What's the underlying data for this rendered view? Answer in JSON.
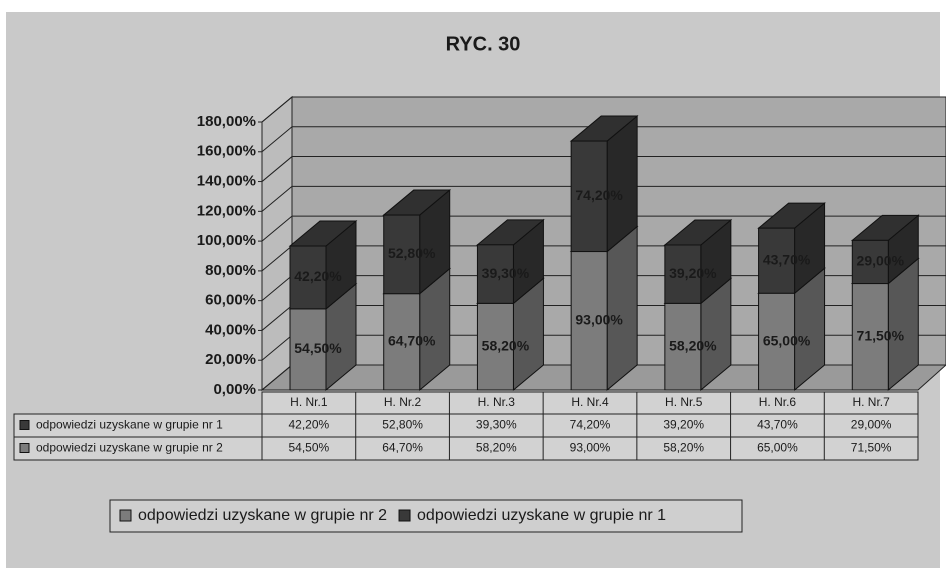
{
  "chart_data": {
    "type": "bar3d_stacked",
    "title": "RYC. 30",
    "categories": [
      "H. Nr.1",
      "H. Nr.2",
      "H. Nr.3",
      "H. Nr.4",
      "H. Nr.5",
      "H. Nr.6",
      "H. Nr.7"
    ],
    "series": [
      {
        "name": "odpowiedzi uzyskane w grupie nr 2",
        "color": "#7c7c7c",
        "values": [
          54.5,
          64.7,
          58.2,
          93.0,
          58.2,
          65.0,
          71.5
        ],
        "value_labels": [
          "54,50%",
          "64,70%",
          "58,20%",
          "93,00%",
          "58,20%",
          "65,00%",
          "71,50%"
        ]
      },
      {
        "name": "odpowiedzi uzyskane w grupie nr 1",
        "color": "#393939",
        "values": [
          42.2,
          52.8,
          39.3,
          74.2,
          39.2,
          43.7,
          29.0
        ],
        "value_labels": [
          "42,20%",
          "52,80%",
          "39,30%",
          "74,20%",
          "39,20%",
          "43,70%",
          "29,00%"
        ]
      }
    ],
    "ylim": [
      0,
      180
    ],
    "yticks": [
      {
        "value": 0,
        "label": "0,00%"
      },
      {
        "value": 20,
        "label": "20,00%"
      },
      {
        "value": 40,
        "label": "40,00%"
      },
      {
        "value": 60,
        "label": "60,00%"
      },
      {
        "value": 80,
        "label": "80,00%"
      },
      {
        "value": 100,
        "label": "100,00%"
      },
      {
        "value": 120,
        "label": "120,00%"
      },
      {
        "value": 140,
        "label": "140,00%"
      },
      {
        "value": 160,
        "label": "160,00%"
      },
      {
        "value": 180,
        "label": "180,00%"
      }
    ],
    "grid": true,
    "legend": "bottom"
  }
}
